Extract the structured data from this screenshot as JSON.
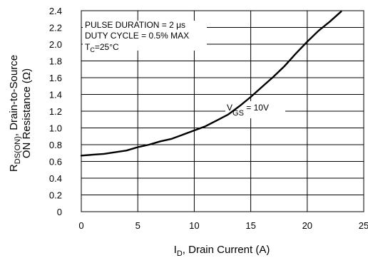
{
  "chart_data": {
    "type": "line",
    "xlabel": {
      "main": "I",
      "sub": "D",
      "rest": ", Drain Current (A)"
    },
    "ylabel": {
      "line1_pre": "R",
      "line1_sub": "DS(ON)",
      "line1_rest": ", Drain-to-Source",
      "line2": "ON Resistance (Ω)"
    },
    "xlim": [
      0,
      25
    ],
    "ylim": [
      0,
      2.4
    ],
    "x_ticks": [
      "0",
      "5",
      "10",
      "15",
      "20",
      "25"
    ],
    "y_ticks": [
      "0",
      "0.2",
      "0.4",
      "0.6",
      "0.8",
      "1.0",
      "1.2",
      "1.4",
      "1.6",
      "1.8",
      "2.0",
      "2.2",
      "2.4"
    ],
    "grid": true,
    "annotations": {
      "pulse": "PULSE DURATION = 2 μs",
      "duty": "DUTY CYCLE = 0.5% MAX",
      "temp_pre": "T",
      "temp_sub": "C",
      "temp_rest": "=25°C",
      "vgs_pre": "V",
      "vgs_sub": "GS",
      "vgs_rest": " = 10V"
    },
    "series": [
      {
        "x": [
          0,
          1,
          2,
          3,
          4,
          5,
          6,
          7,
          8,
          9,
          10,
          11,
          12,
          13,
          14,
          15,
          16,
          17,
          18,
          19,
          20,
          21,
          22,
          23
        ],
        "y": [
          0.67,
          0.68,
          0.69,
          0.71,
          0.73,
          0.77,
          0.8,
          0.84,
          0.87,
          0.92,
          0.97,
          1.02,
          1.09,
          1.16,
          1.26,
          1.37,
          1.49,
          1.61,
          1.74,
          1.89,
          2.03,
          2.16,
          2.27,
          2.39
        ]
      }
    ]
  }
}
